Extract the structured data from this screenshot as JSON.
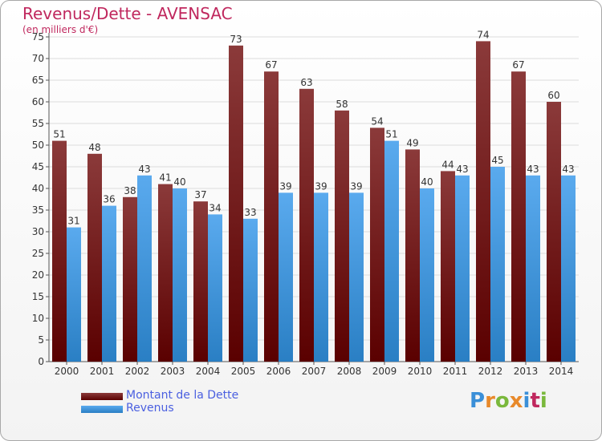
{
  "title": "Revenus/Dette - AVENSAC",
  "subtitle": "(en milliers d'€)",
  "colors": {
    "debt_top": "#8b3a3a",
    "debt_bottom": "#5a0000",
    "revenue_top": "#5aaaee",
    "revenue_bottom": "#2a7fc4",
    "title": "#c0285e",
    "legend_text": "#4a5fe0"
  },
  "legend": {
    "debt_label": "Montant de la Dette",
    "revenue_label": "Revenus"
  },
  "logo": {
    "letters": [
      "P",
      "r",
      "o",
      "x",
      "i",
      "t",
      "i"
    ],
    "colors": [
      "#3a8fd8",
      "#e8892a",
      "#7ab83c",
      "#e8892a",
      "#3a8fd8",
      "#c0285e",
      "#7ab83c"
    ]
  },
  "chart_data": {
    "type": "bar",
    "categories": [
      "2000",
      "2001",
      "2002",
      "2003",
      "2004",
      "2005",
      "2006",
      "2007",
      "2008",
      "2009",
      "2010",
      "2011",
      "2012",
      "2013",
      "2014"
    ],
    "series": [
      {
        "name": "Montant de la Dette",
        "values": [
          51,
          48,
          38,
          41,
          37,
          73,
          67,
          63,
          58,
          54,
          49,
          44,
          74,
          67,
          60
        ]
      },
      {
        "name": "Revenus",
        "values": [
          31,
          36,
          43,
          40,
          34,
          33,
          39,
          39,
          39,
          51,
          40,
          43,
          45,
          43,
          43
        ]
      }
    ],
    "ylim": [
      0,
      75
    ],
    "yticks": [
      0,
      5,
      10,
      15,
      20,
      25,
      30,
      35,
      40,
      45,
      50,
      55,
      60,
      65,
      70,
      75
    ],
    "grid": true,
    "legend_position": "bottom-left"
  }
}
